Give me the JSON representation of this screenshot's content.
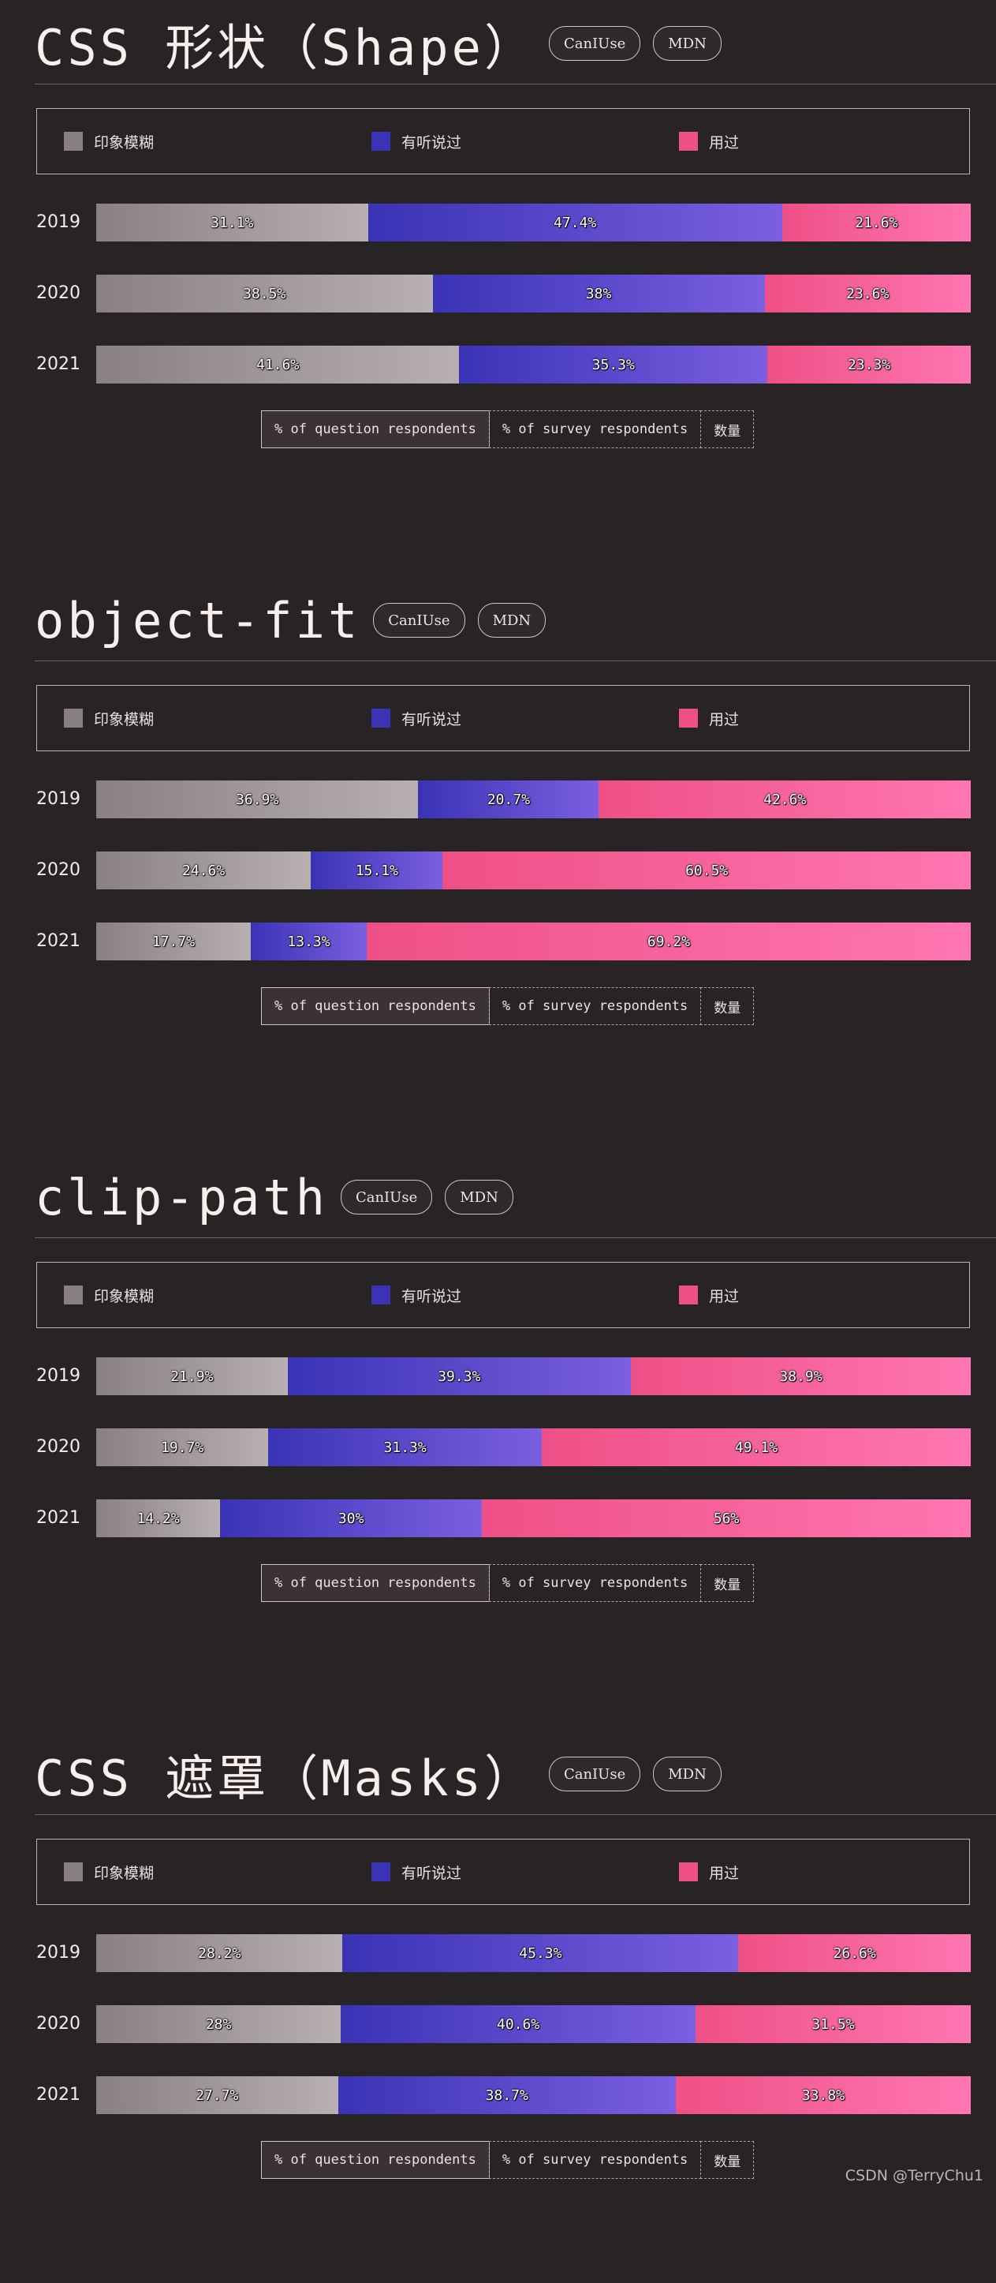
{
  "legend": {
    "fuzzy": "印象模糊",
    "heard": "有听说过",
    "used": "用过"
  },
  "colors": {
    "fuzzy": "#8a8082",
    "heard": "#3a33b5",
    "used": "#ee5086",
    "background": "#282425"
  },
  "toggle": {
    "question_label": "% of question respondents",
    "survey_label": "% of survey respondents",
    "count_label": "数量"
  },
  "links": {
    "caniuse_label": "CanIUse",
    "mdn_label": "MDN"
  },
  "watermark": "CSDN @TerryChu1",
  "chart_data": [
    {
      "type": "bar",
      "title": "CSS 形状（Shape）",
      "categories": [
        "2019",
        "2020",
        "2021"
      ],
      "series": [
        {
          "name": "印象模糊",
          "values": [
            31.1,
            38.5,
            41.6
          ],
          "labels": [
            "31.1%",
            "38.5%",
            "41.6%"
          ]
        },
        {
          "name": "有听说过",
          "values": [
            47.4,
            38,
            35.3
          ],
          "labels": [
            "47.4%",
            "38%",
            "35.3%"
          ]
        },
        {
          "name": "用过",
          "values": [
            21.6,
            23.6,
            23.3
          ],
          "labels": [
            "21.6%",
            "23.6%",
            "23.3%"
          ]
        }
      ]
    },
    {
      "type": "bar",
      "title": "object-fit",
      "categories": [
        "2019",
        "2020",
        "2021"
      ],
      "series": [
        {
          "name": "印象模糊",
          "values": [
            36.9,
            24.6,
            17.7
          ],
          "labels": [
            "36.9%",
            "24.6%",
            "17.7%"
          ]
        },
        {
          "name": "有听说过",
          "values": [
            20.7,
            15.1,
            13.3
          ],
          "labels": [
            "20.7%",
            "15.1%",
            "13.3%"
          ]
        },
        {
          "name": "用过",
          "values": [
            42.6,
            60.5,
            69.2
          ],
          "labels": [
            "42.6%",
            "60.5%",
            "69.2%"
          ]
        }
      ]
    },
    {
      "type": "bar",
      "title": "clip-path",
      "categories": [
        "2019",
        "2020",
        "2021"
      ],
      "series": [
        {
          "name": "印象模糊",
          "values": [
            21.9,
            19.7,
            14.2
          ],
          "labels": [
            "21.9%",
            "19.7%",
            "14.2%"
          ]
        },
        {
          "name": "有听说过",
          "values": [
            39.3,
            31.3,
            30
          ],
          "labels": [
            "39.3%",
            "31.3%",
            "30%"
          ]
        },
        {
          "name": "用过",
          "values": [
            38.9,
            49.1,
            56
          ],
          "labels": [
            "38.9%",
            "49.1%",
            "56%"
          ]
        }
      ]
    },
    {
      "type": "bar",
      "title": "CSS 遮罩（Masks）",
      "categories": [
        "2019",
        "2020",
        "2021"
      ],
      "series": [
        {
          "name": "印象模糊",
          "values": [
            28.2,
            28,
            27.7
          ],
          "labels": [
            "28.2%",
            "28%",
            "27.7%"
          ]
        },
        {
          "name": "有听说过",
          "values": [
            45.3,
            40.6,
            38.7
          ],
          "labels": [
            "45.3%",
            "40.6%",
            "38.7%"
          ]
        },
        {
          "name": "用过",
          "values": [
            26.6,
            31.5,
            33.8
          ],
          "labels": [
            "26.6%",
            "31.5%",
            "33.8%"
          ]
        }
      ]
    }
  ]
}
